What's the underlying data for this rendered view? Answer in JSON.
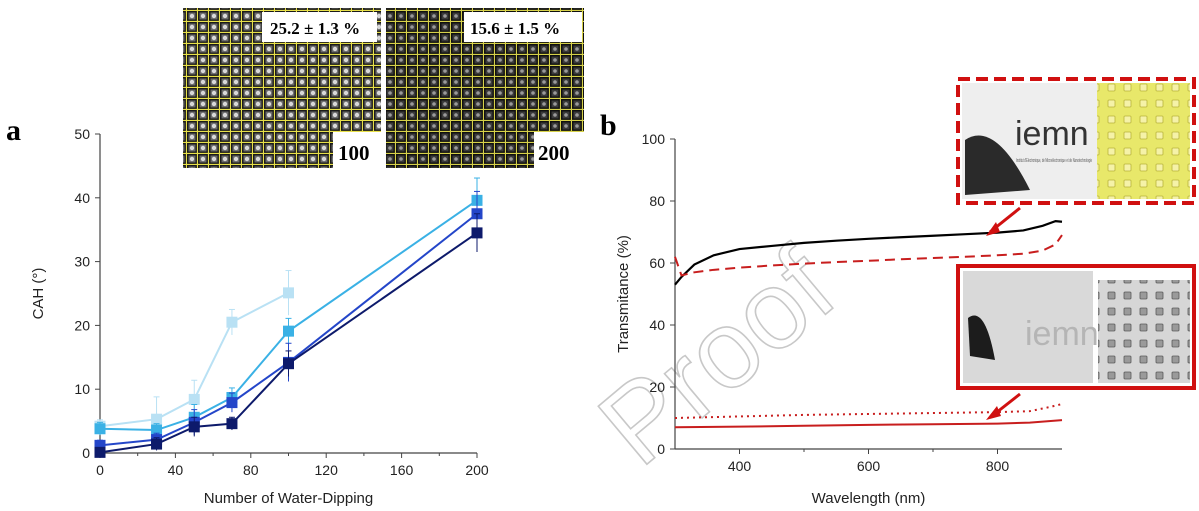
{
  "panels": {
    "a": "a",
    "b": "b"
  },
  "watermark": "Proof",
  "insets_a": [
    {
      "label": "25.2 ± 1.3 %",
      "number": "100"
    },
    {
      "label": "15.6 ± 1.5 %",
      "number": "200"
    }
  ],
  "insets_b": {
    "logo_text": "iemn",
    "logo_sub": "Institut d'Electronique, de Microélectronique et de Nanotechnologie"
  },
  "colors": {
    "series_a": [
      "#b9e1f4",
      "#3ab1e5",
      "#2446c9",
      "#0d1a6b"
    ],
    "black": "#000000",
    "red": "#c81e1e"
  },
  "chart_data": [
    {
      "type": "line",
      "xlabel": "Number of Water-Dipping",
      "ylabel": "CAH (°)",
      "xlim": [
        0,
        200
      ],
      "ylim": [
        0,
        50
      ],
      "xticks": [
        "0",
        "40",
        "80",
        "120",
        "160",
        "200"
      ],
      "yticks": [
        "0",
        "10",
        "20",
        "30",
        "40",
        "50"
      ],
      "series": [
        {
          "x": [
            0,
            30,
            50,
            70,
            100
          ],
          "y": [
            4.2,
            5.3,
            8.4,
            20.5,
            25.1
          ],
          "err": [
            1.0,
            3.5,
            3.0,
            2.0,
            3.5
          ]
        },
        {
          "x": [
            0,
            30,
            50,
            70,
            100,
            200
          ],
          "y": [
            3.8,
            3.6,
            5.6,
            8.7,
            19.1,
            39.6
          ],
          "err": [
            1.0,
            1.0,
            2.0,
            1.5,
            2.0,
            3.5
          ]
        },
        {
          "x": [
            0,
            30,
            50,
            70,
            100,
            200
          ],
          "y": [
            1.2,
            2.1,
            4.8,
            7.9,
            14.2,
            37.5
          ],
          "err": [
            0.8,
            1.0,
            2.0,
            1.5,
            3.0,
            3.5
          ]
        },
        {
          "x": [
            0,
            30,
            50,
            70,
            100,
            200
          ],
          "y": [
            0.1,
            1.4,
            4.1,
            4.6,
            14.0,
            34.5
          ],
          "err": [
            0.5,
            1.0,
            1.5,
            1.0,
            2.0,
            3.0
          ]
        }
      ]
    },
    {
      "type": "line",
      "xlabel": "Wavelength (nm)",
      "ylabel": "Transmitance (%)",
      "xlim": [
        300,
        900
      ],
      "ylim": [
        0,
        100
      ],
      "xticks": [
        "400",
        "600",
        "800"
      ],
      "yticks": [
        "0",
        "20",
        "40",
        "60",
        "80",
        "100"
      ],
      "series": [
        {
          "style": "solid-black",
          "x": [
            300,
            310,
            330,
            360,
            400,
            450,
            500,
            550,
            600,
            650,
            700,
            750,
            800,
            840,
            870,
            890,
            900
          ],
          "y": [
            53,
            55.5,
            59.5,
            62.5,
            64.5,
            65.5,
            66.5,
            67.2,
            67.8,
            68.3,
            68.8,
            69.3,
            69.8,
            70.5,
            72,
            73.5,
            73.3
          ]
        },
        {
          "style": "dashed-red",
          "x": [
            300,
            310,
            330,
            360,
            400,
            450,
            500,
            550,
            600,
            650,
            700,
            750,
            800,
            840,
            870,
            890,
            900
          ],
          "y": [
            62,
            56,
            57,
            57.8,
            58.5,
            59.2,
            59.8,
            60.3,
            60.7,
            61.2,
            61.6,
            62,
            62.5,
            63,
            64,
            66,
            69
          ]
        },
        {
          "style": "dotted-red",
          "x": [
            300,
            400,
            500,
            600,
            700,
            800,
            850,
            880,
            900
          ],
          "y": [
            10,
            10.5,
            11,
            11.3,
            11.6,
            11.9,
            12.2,
            13.5,
            14.5
          ]
        },
        {
          "style": "solid-red",
          "x": [
            300,
            400,
            500,
            600,
            700,
            800,
            850,
            880,
            900
          ],
          "y": [
            7,
            7.2,
            7.5,
            7.8,
            8,
            8.2,
            8.5,
            9,
            9.3
          ]
        }
      ]
    }
  ]
}
